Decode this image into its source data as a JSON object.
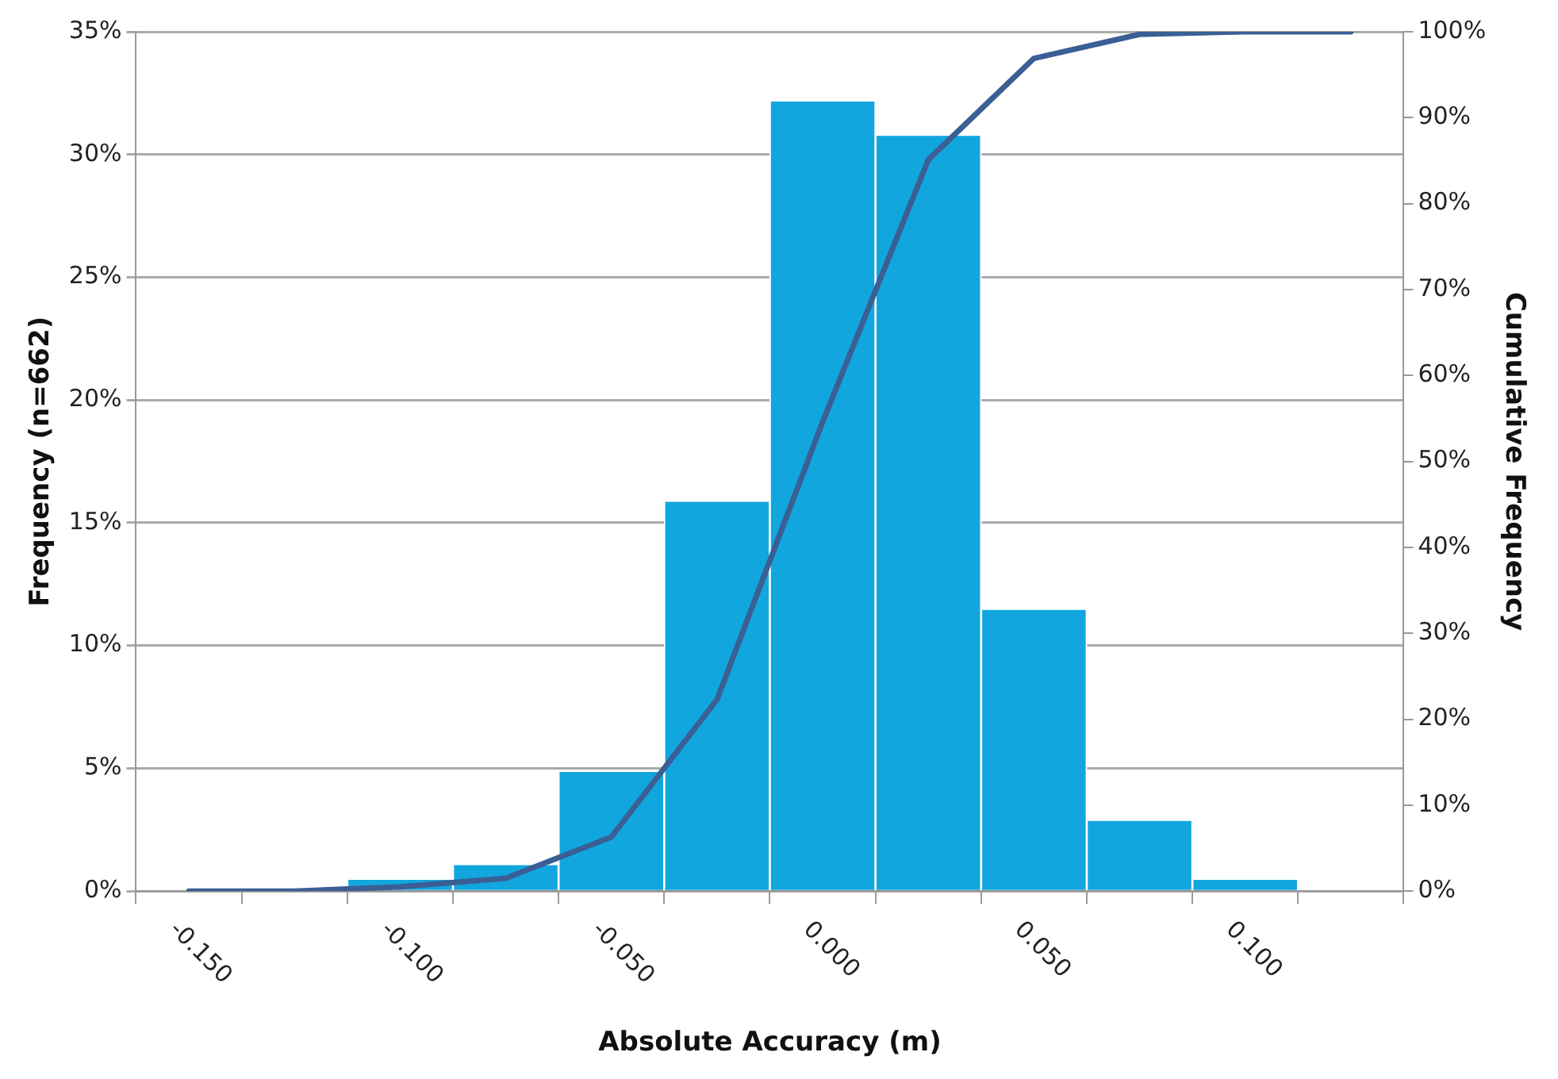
{
  "chart_data": {
    "type": "bar",
    "xlabel": "Absolute Accuracy (m)",
    "ylabel": "Frequency (n=662)",
    "y2label": "Cumulative Frequency",
    "categories": [
      "-0.150",
      null,
      "-0.100",
      null,
      "-0.050",
      null,
      "0.000",
      null,
      "0.050",
      null,
      "0.100",
      null
    ],
    "series": [
      {
        "color": "#12a6de",
        "values": [
          0,
          0,
          0.5,
          1.1,
          4.9,
          15.9,
          32.2,
          30.8,
          11.5,
          2.9,
          0.5,
          0
        ]
      },
      {
        "type": "line",
        "axis": "y2",
        "color": "#3a5f95",
        "values": [
          0,
          0,
          0.5,
          1.5,
          6.3,
          22.3,
          54.6,
          85.1,
          96.9,
          99.7,
          100,
          100
        ]
      }
    ],
    "ylim": [
      0,
      35
    ],
    "yticks": [
      {
        "value": 0,
        "label": "0%"
      },
      {
        "value": 5,
        "label": "5%"
      },
      {
        "value": 10,
        "label": "10%"
      },
      {
        "value": 15,
        "label": "15%"
      },
      {
        "value": 20,
        "label": "20%"
      },
      {
        "value": 25,
        "label": "25%"
      },
      {
        "value": 30,
        "label": "30%"
      },
      {
        "value": 35,
        "label": "35%"
      }
    ],
    "y2lim": [
      0,
      100
    ],
    "y2ticks": [
      {
        "value": 0,
        "label": "0%"
      },
      {
        "value": 10,
        "label": "10%"
      },
      {
        "value": 20,
        "label": "20%"
      },
      {
        "value": 30,
        "label": "30%"
      },
      {
        "value": 40,
        "label": "40%"
      },
      {
        "value": 50,
        "label": "50%"
      },
      {
        "value": 60,
        "label": "60%"
      },
      {
        "value": 70,
        "label": "70%"
      },
      {
        "value": 80,
        "label": "80%"
      },
      {
        "value": 90,
        "label": "90%"
      },
      {
        "value": 100,
        "label": "100%"
      }
    ],
    "grid": "y",
    "marker": "none"
  }
}
